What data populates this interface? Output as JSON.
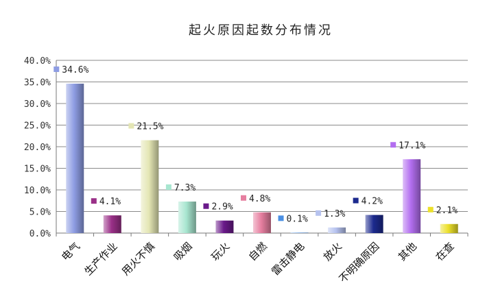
{
  "chart_data": {
    "type": "bar",
    "title": "起火原因起数分布情况",
    "categories": [
      "电气",
      "生产作业",
      "用火不慎",
      "吸烟",
      "玩火",
      "自燃",
      "雷击静电",
      "放火",
      "不明确原因",
      "其他",
      "在查"
    ],
    "values": [
      34.6,
      4.1,
      21.5,
      7.3,
      2.9,
      4.8,
      0.1,
      1.3,
      4.2,
      17.1,
      2.1
    ],
    "data_labels": [
      "34.6%",
      "4.1%",
      "21.5%",
      "7.3%",
      "2.9%",
      "4.8%",
      "0.1%",
      "1.3%",
      "4.2%",
      "17.1%",
      "2.1%"
    ],
    "colors": [
      "#8e9de3",
      "#9a3088",
      "#e4e6b4",
      "#a8e6d0",
      "#6a1a8a",
      "#e67fa0",
      "#4a8fe3",
      "#b6c2ef",
      "#1c2a8e",
      "#b36ef0",
      "#ece02a"
    ],
    "yticks": [
      "0.0%",
      "5.0%",
      "10.0%",
      "15.0%",
      "20.0%",
      "25.0%",
      "30.0%",
      "35.0%",
      "40.0%"
    ],
    "ylim": [
      0,
      40
    ],
    "xlabel": "",
    "ylabel": "",
    "grid": true,
    "legend": "none"
  }
}
